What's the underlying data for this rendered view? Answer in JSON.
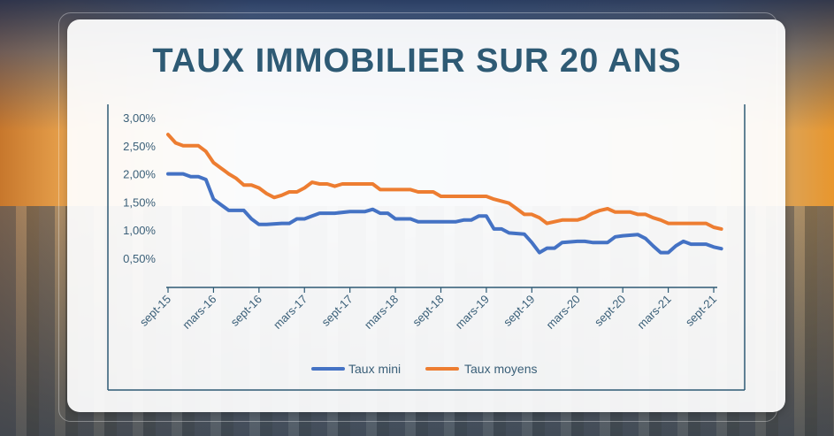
{
  "title": "TAUX IMMOBILIER SUR 20 ANS",
  "chart_data": {
    "type": "line",
    "title": "TAUX IMMOBILIER SUR 20 ANS",
    "xlabel": "",
    "ylabel": "",
    "grid": false,
    "legend_position": "bottom",
    "ylim": [
      0.2,
      3.0
    ],
    "y_ticks": [
      "3,00%",
      "2,50%",
      "2,00%",
      "1,50%",
      "1,00%",
      "0,50%"
    ],
    "y_tick_values": [
      3.0,
      2.5,
      2.0,
      1.5,
      1.0,
      0.5
    ],
    "x_tick_labels": [
      "sept-15",
      "mars-16",
      "sept-16",
      "mars-17",
      "sept-17",
      "mars-18",
      "sept-18",
      "mars-19",
      "sept-19",
      "mars-20",
      "sept-20",
      "mars-21",
      "sept-21"
    ],
    "x_tick_months": [
      0,
      6,
      12,
      18,
      24,
      30,
      36,
      42,
      48,
      54,
      60,
      66,
      72
    ],
    "x_start": "sept-15",
    "series": [
      {
        "name": "Taux mini",
        "color": "#4472c4",
        "points": [
          [
            0,
            2.0
          ],
          [
            2,
            2.0
          ],
          [
            3,
            1.95
          ],
          [
            4,
            1.95
          ],
          [
            5,
            1.9
          ],
          [
            6,
            1.55
          ],
          [
            7,
            1.45
          ],
          [
            8,
            1.35
          ],
          [
            10,
            1.35
          ],
          [
            11,
            1.2
          ],
          [
            12,
            1.1
          ],
          [
            13,
            1.1
          ],
          [
            15,
            1.12
          ],
          [
            16,
            1.12
          ],
          [
            17,
            1.2
          ],
          [
            18,
            1.2
          ],
          [
            19,
            1.25
          ],
          [
            20,
            1.3
          ],
          [
            22,
            1.3
          ],
          [
            24,
            1.33
          ],
          [
            26,
            1.33
          ],
          [
            27,
            1.37
          ],
          [
            28,
            1.3
          ],
          [
            29,
            1.3
          ],
          [
            30,
            1.2
          ],
          [
            32,
            1.2
          ],
          [
            33,
            1.15
          ],
          [
            36,
            1.15
          ],
          [
            38,
            1.15
          ],
          [
            39,
            1.18
          ],
          [
            40,
            1.18
          ],
          [
            41,
            1.25
          ],
          [
            42,
            1.25
          ],
          [
            43,
            1.02
          ],
          [
            44,
            1.02
          ],
          [
            45,
            0.95
          ],
          [
            47,
            0.93
          ],
          [
            48,
            0.78
          ],
          [
            49,
            0.6
          ],
          [
            50,
            0.68
          ],
          [
            51,
            0.68
          ],
          [
            52,
            0.78
          ],
          [
            54,
            0.8
          ],
          [
            55,
            0.8
          ],
          [
            56,
            0.78
          ],
          [
            58,
            0.78
          ],
          [
            59,
            0.88
          ],
          [
            60,
            0.9
          ],
          [
            62,
            0.92
          ],
          [
            63,
            0.85
          ],
          [
            64,
            0.72
          ],
          [
            65,
            0.6
          ],
          [
            66,
            0.6
          ],
          [
            67,
            0.72
          ],
          [
            68,
            0.8
          ],
          [
            69,
            0.75
          ],
          [
            70,
            0.75
          ],
          [
            71,
            0.75
          ],
          [
            72,
            0.7
          ],
          [
            73,
            0.67
          ]
        ]
      },
      {
        "name": "Taux moyens",
        "color": "#ed7d31",
        "points": [
          [
            0,
            2.7
          ],
          [
            1,
            2.55
          ],
          [
            2,
            2.5
          ],
          [
            4,
            2.5
          ],
          [
            5,
            2.4
          ],
          [
            6,
            2.2
          ],
          [
            7,
            2.1
          ],
          [
            8,
            2.0
          ],
          [
            9,
            1.92
          ],
          [
            10,
            1.8
          ],
          [
            11,
            1.8
          ],
          [
            12,
            1.75
          ],
          [
            13,
            1.65
          ],
          [
            14,
            1.58
          ],
          [
            15,
            1.62
          ],
          [
            16,
            1.68
          ],
          [
            17,
            1.68
          ],
          [
            18,
            1.75
          ],
          [
            19,
            1.85
          ],
          [
            20,
            1.82
          ],
          [
            21,
            1.82
          ],
          [
            22,
            1.78
          ],
          [
            23,
            1.82
          ],
          [
            24,
            1.82
          ],
          [
            26,
            1.82
          ],
          [
            27,
            1.82
          ],
          [
            28,
            1.72
          ],
          [
            30,
            1.72
          ],
          [
            32,
            1.72
          ],
          [
            33,
            1.68
          ],
          [
            35,
            1.68
          ],
          [
            36,
            1.6
          ],
          [
            40,
            1.6
          ],
          [
            42,
            1.6
          ],
          [
            43,
            1.55
          ],
          [
            45,
            1.48
          ],
          [
            46,
            1.38
          ],
          [
            47,
            1.28
          ],
          [
            48,
            1.28
          ],
          [
            49,
            1.22
          ],
          [
            50,
            1.12
          ],
          [
            51,
            1.15
          ],
          [
            52,
            1.18
          ],
          [
            53,
            1.18
          ],
          [
            54,
            1.18
          ],
          [
            55,
            1.22
          ],
          [
            56,
            1.3
          ],
          [
            57,
            1.35
          ],
          [
            58,
            1.38
          ],
          [
            59,
            1.32
          ],
          [
            60,
            1.32
          ],
          [
            61,
            1.32
          ],
          [
            62,
            1.28
          ],
          [
            63,
            1.28
          ],
          [
            64,
            1.22
          ],
          [
            65,
            1.18
          ],
          [
            66,
            1.12
          ],
          [
            70,
            1.12
          ],
          [
            71,
            1.12
          ],
          [
            72,
            1.05
          ],
          [
            73,
            1.02
          ]
        ]
      }
    ]
  }
}
